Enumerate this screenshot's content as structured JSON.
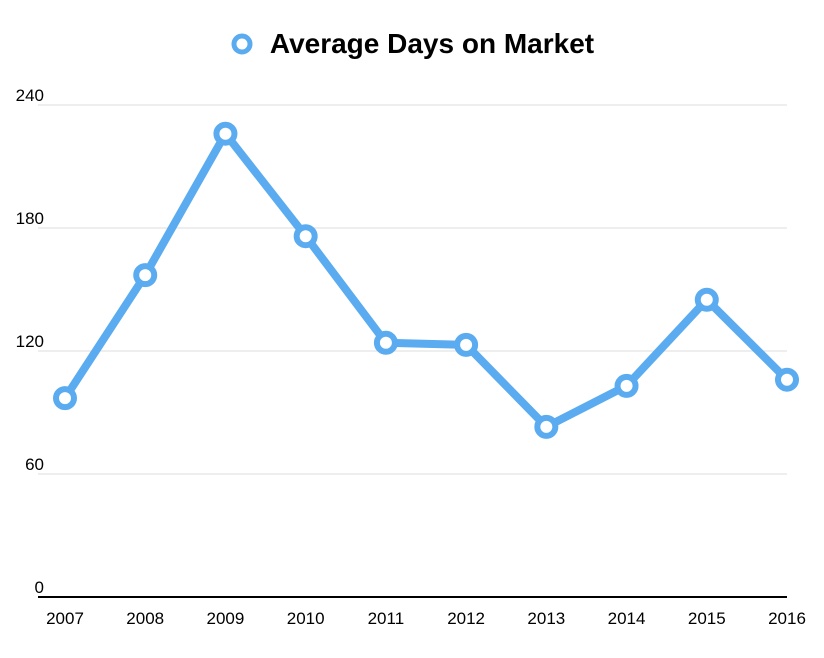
{
  "chart_data": {
    "type": "line",
    "title": "",
    "xlabel": "",
    "ylabel": "",
    "categories": [
      "2007",
      "2008",
      "2009",
      "2010",
      "2011",
      "2012",
      "2013",
      "2014",
      "2015",
      "2016"
    ],
    "series": [
      {
        "name": "Average Days on Market",
        "values": [
          97,
          157,
          226,
          176,
          124,
          123,
          83,
          103,
          145,
          106
        ],
        "color": "#5aabf0"
      }
    ],
    "ylim": [
      0,
      240
    ],
    "yticks": [
      "0",
      "60",
      "120",
      "180",
      "240"
    ],
    "grid": true,
    "legend": "top-center",
    "colors": {
      "line": "#5aabf0",
      "marker_fill": "#ffffff",
      "gridline": "#dddddd",
      "axis": "#000000"
    }
  }
}
